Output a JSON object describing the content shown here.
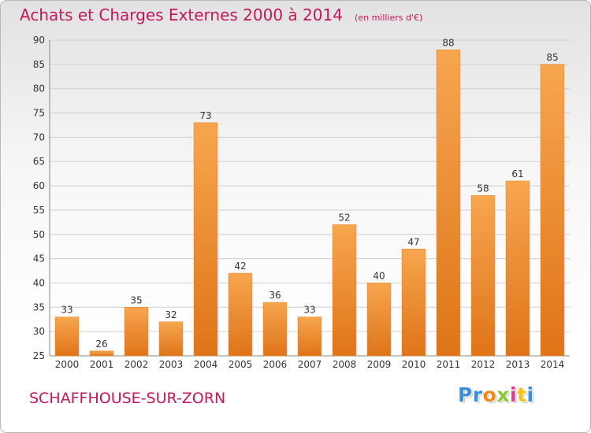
{
  "chart_data": {
    "type": "bar",
    "title": "Achats et Charges Externes 2000 à 2014",
    "subtitle": "(en milliers d'€)",
    "categories": [
      "2000",
      "2001",
      "2002",
      "2003",
      "2004",
      "2005",
      "2006",
      "2007",
      "2008",
      "2009",
      "2010",
      "2011",
      "2012",
      "2013",
      "2014"
    ],
    "values": [
      33,
      26,
      35,
      32,
      73,
      42,
      36,
      33,
      52,
      40,
      47,
      88,
      58,
      61,
      85
    ],
    "ylim": [
      25,
      90
    ],
    "yticks": [
      25,
      30,
      35,
      40,
      45,
      50,
      55,
      60,
      65,
      70,
      75,
      80,
      85,
      90
    ],
    "grid": true,
    "xlabel": "",
    "ylabel": "",
    "bar_color": "#f0922e"
  },
  "commune": "SCHAFFHOUSE-SUR-ZORN",
  "logo": {
    "letters": [
      "P",
      "r",
      "o",
      "x",
      "i",
      "t",
      "i"
    ],
    "colors": [
      "#3b8fd9",
      "#3b8fd9",
      "#f08a1c",
      "#8dc63f",
      "#e03c8a",
      "#f6c21a",
      "#3b8fd9"
    ]
  },
  "colors": {
    "title": "#c2185b",
    "grid": "#cfcfcf",
    "axis_text": "#333333"
  }
}
